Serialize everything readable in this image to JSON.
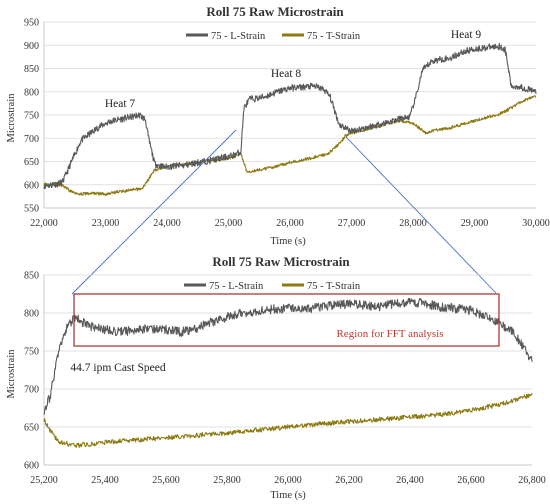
{
  "chart_data": [
    {
      "type": "line",
      "title": "Roll 75 Raw Microstrain",
      "xlabel": "Time (s)",
      "ylabel": "Microstrain",
      "xlim": [
        22000,
        30000
      ],
      "ylim": [
        550,
        950
      ],
      "xticks": [
        22000,
        23000,
        24000,
        25000,
        26000,
        27000,
        28000,
        29000,
        30000
      ],
      "xtick_labels": [
        "22,000",
        "23,000",
        "24,000",
        "25,000",
        "26,000",
        "27,000",
        "28,000",
        "29,000",
        "30,000"
      ],
      "yticks": [
        550,
        600,
        650,
        700,
        750,
        800,
        850,
        900,
        950
      ],
      "grid": true,
      "legend": "top-center",
      "series": [
        {
          "name": "75 - L-Strain",
          "color": "#595959",
          "points": [
            [
              22000,
              598
            ],
            [
              22150,
              600
            ],
            [
              22300,
              605
            ],
            [
              22450,
              650
            ],
            [
              22600,
              695
            ],
            [
              22750,
              710
            ],
            [
              22900,
              725
            ],
            [
              23050,
              735
            ],
            [
              23200,
              740
            ],
            [
              23400,
              745
            ],
            [
              23550,
              750
            ],
            [
              23650,
              740
            ],
            [
              23700,
              700
            ],
            [
              23800,
              645
            ],
            [
              23950,
              638
            ],
            [
              24100,
              640
            ],
            [
              24300,
              642
            ],
            [
              24500,
              648
            ],
            [
              24700,
              652
            ],
            [
              24900,
              658
            ],
            [
              25050,
              662
            ],
            [
              25150,
              668
            ],
            [
              25200,
              670
            ],
            [
              25250,
              765
            ],
            [
              25350,
              785
            ],
            [
              25450,
              785
            ],
            [
              25600,
              790
            ],
            [
              25800,
              800
            ],
            [
              26000,
              808
            ],
            [
              26200,
              810
            ],
            [
              26400,
              812
            ],
            [
              26550,
              805
            ],
            [
              26650,
              790
            ],
            [
              26750,
              750
            ],
            [
              26800,
              730
            ],
            [
              27000,
              715
            ],
            [
              27200,
              722
            ],
            [
              27400,
              728
            ],
            [
              27600,
              735
            ],
            [
              27800,
              742
            ],
            [
              27950,
              746
            ],
            [
              28050,
              790
            ],
            [
              28150,
              845
            ],
            [
              28300,
              865
            ],
            [
              28450,
              870
            ],
            [
              28600,
              872
            ],
            [
              28800,
              885
            ],
            [
              29000,
              892
            ],
            [
              29200,
              895
            ],
            [
              29400,
              898
            ],
            [
              29500,
              890
            ],
            [
              29550,
              850
            ],
            [
              29600,
              810
            ],
            [
              29700,
              812
            ],
            [
              29800,
              808
            ],
            [
              30000,
              800
            ]
          ]
        },
        {
          "name": "75 - T-Strain",
          "color": "#8c7a12",
          "points": [
            [
              22000,
              600
            ],
            [
              22150,
              602
            ],
            [
              22300,
              598
            ],
            [
              22450,
              585
            ],
            [
              22600,
              580
            ],
            [
              22800,
              582
            ],
            [
              23000,
              580
            ],
            [
              23200,
              585
            ],
            [
              23400,
              588
            ],
            [
              23600,
              592
            ],
            [
              23800,
              632
            ],
            [
              24000,
              640
            ],
            [
              24300,
              645
            ],
            [
              24600,
              650
            ],
            [
              24900,
              655
            ],
            [
              25100,
              660
            ],
            [
              25200,
              668
            ],
            [
              25300,
              628
            ],
            [
              25500,
              632
            ],
            [
              25800,
              640
            ],
            [
              26000,
              648
            ],
            [
              26300,
              656
            ],
            [
              26600,
              665
            ],
            [
              26800,
              688
            ],
            [
              26900,
              705
            ],
            [
              27000,
              712
            ],
            [
              27200,
              718
            ],
            [
              27400,
              725
            ],
            [
              27600,
              732
            ],
            [
              27800,
              738
            ],
            [
              28000,
              732
            ],
            [
              28200,
              712
            ],
            [
              28400,
              718
            ],
            [
              28600,
              722
            ],
            [
              28800,
              730
            ],
            [
              29000,
              738
            ],
            [
              29200,
              745
            ],
            [
              29400,
              752
            ],
            [
              29600,
              765
            ],
            [
              29800,
              782
            ],
            [
              30000,
              790
            ]
          ]
        }
      ],
      "annotations": [
        "Heat 7",
        "Heat 8",
        "Heat 9"
      ]
    },
    {
      "type": "line",
      "title": "Roll 75 Raw Microstrain",
      "xlabel": "Time (s)",
      "ylabel": "Microstrain",
      "xlim": [
        25200,
        26800
      ],
      "ylim": [
        600,
        850
      ],
      "xticks": [
        25200,
        25400,
        25600,
        25800,
        26000,
        26200,
        26400,
        26600,
        26800
      ],
      "xtick_labels": [
        "25,200",
        "25,400",
        "25,600",
        "25,800",
        "26,000",
        "26,200",
        "26,400",
        "26,600",
        "26,800"
      ],
      "yticks": [
        600,
        650,
        700,
        750,
        800,
        850
      ],
      "grid": true,
      "legend": "top-center",
      "series": [
        {
          "name": "75 - L-Strain",
          "color": "#595959",
          "points": [
            [
              25200,
              672
            ],
            [
              25220,
              690
            ],
            [
              25240,
              735
            ],
            [
              25260,
              765
            ],
            [
              25280,
              785
            ],
            [
              25300,
              793
            ],
            [
              25320,
              790
            ],
            [
              25350,
              782
            ],
            [
              25400,
              778
            ],
            [
              25450,
              775
            ],
            [
              25500,
              778
            ],
            [
              25550,
              780
            ],
            [
              25600,
              778
            ],
            [
              25650,
              775
            ],
            [
              25700,
              780
            ],
            [
              25750,
              788
            ],
            [
              25800,
              795
            ],
            [
              25850,
              800
            ],
            [
              25900,
              802
            ],
            [
              25950,
              805
            ],
            [
              26000,
              806
            ],
            [
              26050,
              805
            ],
            [
              26100,
              807
            ],
            [
              26150,
              810
            ],
            [
              26200,
              812
            ],
            [
              26250,
              810
            ],
            [
              26300,
              808
            ],
            [
              26350,
              812
            ],
            [
              26400,
              815
            ],
            [
              26450,
              812
            ],
            [
              26500,
              808
            ],
            [
              26550,
              806
            ],
            [
              26600,
              804
            ],
            [
              26650,
              795
            ],
            [
              26700,
              785
            ],
            [
              26740,
              775
            ],
            [
              26770,
              755
            ],
            [
              26800,
              738
            ]
          ]
        },
        {
          "name": "75 - T-Strain",
          "color": "#8c7a12",
          "points": [
            [
              25200,
              660
            ],
            [
              25220,
              645
            ],
            [
              25250,
              630
            ],
            [
              25300,
              626
            ],
            [
              25350,
              627
            ],
            [
              25400,
              630
            ],
            [
              25500,
              633
            ],
            [
              25600,
              636
            ],
            [
              25700,
              639
            ],
            [
              25800,
              642
            ],
            [
              25900,
              646
            ],
            [
              26000,
              650
            ],
            [
              26100,
              654
            ],
            [
              26200,
              657
            ],
            [
              26300,
              660
            ],
            [
              26400,
              663
            ],
            [
              26500,
              666
            ],
            [
              26600,
              672
            ],
            [
              26700,
              680
            ],
            [
              26750,
              686
            ],
            [
              26800,
              693
            ]
          ]
        }
      ],
      "annotations": [
        "Region for FFT analysis",
        "44.7 ipm Cast Speed"
      ]
    }
  ]
}
